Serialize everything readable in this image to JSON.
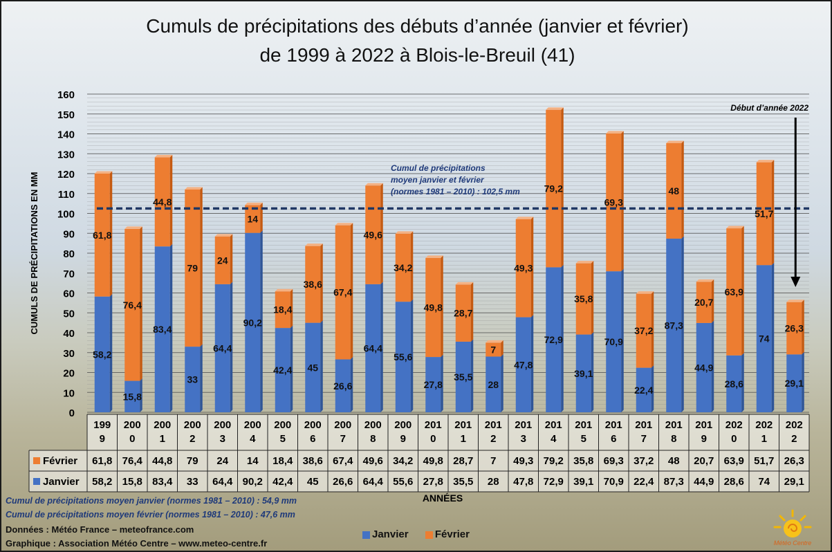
{
  "title_line1": "Cumuls de précipitations des débuts d’année (janvier et février)",
  "title_line2": "de 1999 à 2022 à Blois-le-Breuil (41)",
  "colors": {
    "janvier": "#4472c4",
    "fevrier": "#ed7d31",
    "normal_line": "#203864",
    "arrow": "#000000"
  },
  "annotations": {
    "mean_label_1": "Cumul de précipitations",
    "mean_label_2": "moyen janvier et février",
    "mean_label_3": "(normes 1981 – 2010) : 102,5 mm",
    "debut_annee": "Début d’année 2022"
  },
  "notes": {
    "jan_mean": "Cumul de précipitations moyen janvier (normes 1981 – 2010) : 54,9 mm",
    "feb_mean": "Cumul de précipitations moyen février (normes 1981 – 2010) : 47,6 mm",
    "donnees": "Données : Météo France – meteofrance.com",
    "graphique": "Graphique : Association Météo Centre – www.meteo-centre.fr"
  },
  "legend": {
    "janvier": "Janvier",
    "fevrier": "Février"
  },
  "logo_text": "Météo Centre",
  "chart_data": {
    "type": "bar",
    "stacked": true,
    "title": "Cumuls de précipitations des débuts d’année (janvier et février) de 1999 à 2022 à Blois-le-Breuil (41)",
    "xlabel": "ANNÉES",
    "ylabel": "CUMULS DE PRÉCIPITATIONS EN MM",
    "ylim": [
      0,
      160
    ],
    "yticks": [
      0,
      10,
      20,
      30,
      40,
      50,
      60,
      70,
      80,
      90,
      100,
      110,
      120,
      130,
      140,
      150,
      160
    ],
    "categories": [
      "1999",
      "2000",
      "2001",
      "2002",
      "2003",
      "2004",
      "2005",
      "2006",
      "2007",
      "2008",
      "2009",
      "2010",
      "2011",
      "2012",
      "2013",
      "2014",
      "2015",
      "2016",
      "2017",
      "2018",
      "2019",
      "2020",
      "2021",
      "2022"
    ],
    "category_labels": [
      [
        "199",
        "9"
      ],
      [
        "200",
        "0"
      ],
      [
        "200",
        "1"
      ],
      [
        "200",
        "2"
      ],
      [
        "200",
        "3"
      ],
      [
        "200",
        "4"
      ],
      [
        "200",
        "5"
      ],
      [
        "200",
        "6"
      ],
      [
        "200",
        "7"
      ],
      [
        "200",
        "8"
      ],
      [
        "200",
        "9"
      ],
      [
        "201",
        "0"
      ],
      [
        "201",
        "1"
      ],
      [
        "201",
        "2"
      ],
      [
        "201",
        "3"
      ],
      [
        "201",
        "4"
      ],
      [
        "201",
        "5"
      ],
      [
        "201",
        "6"
      ],
      [
        "201",
        "7"
      ],
      [
        "201",
        "8"
      ],
      [
        "201",
        "9"
      ],
      [
        "202",
        "0"
      ],
      [
        "202",
        "1"
      ],
      [
        "202",
        "2"
      ]
    ],
    "series": [
      {
        "name": "Janvier",
        "values": [
          58.2,
          15.8,
          83.4,
          33,
          64.4,
          90.2,
          42.4,
          45,
          26.6,
          64.4,
          55.6,
          27.8,
          35.5,
          28,
          47.8,
          72.9,
          39.1,
          70.9,
          22.4,
          87.3,
          44.9,
          28.6,
          74,
          29.1
        ],
        "labels": [
          "58,2",
          "15,8",
          "83,4",
          "33",
          "64,4",
          "90,2",
          "42,4",
          "45",
          "26,6",
          "64,4",
          "55,6",
          "27,8",
          "35,5",
          "28",
          "47,8",
          "72,9",
          "39,1",
          "70,9",
          "22,4",
          "87,3",
          "44,9",
          "28,6",
          "74",
          "29,1"
        ]
      },
      {
        "name": "Février",
        "values": [
          61.8,
          76.4,
          44.8,
          79,
          24,
          14,
          18.4,
          38.6,
          67.4,
          49.6,
          34.2,
          49.8,
          28.7,
          7,
          49.3,
          79.2,
          35.8,
          69.3,
          37.2,
          48,
          20.7,
          63.9,
          51.7,
          26.3
        ],
        "labels": [
          "61,8",
          "76,4",
          "44,8",
          "79",
          "24",
          "14",
          "18,4",
          "38,6",
          "67,4",
          "49,6",
          "34,2",
          "49,8",
          "28,7",
          "7",
          "49,3",
          "79,2",
          "35,8",
          "69,3",
          "37,2",
          "48",
          "20,7",
          "63,9",
          "51,7",
          "26,3"
        ]
      }
    ],
    "reference_line": {
      "value": 102.5
    },
    "legend_position": "bottom",
    "grid": true
  }
}
